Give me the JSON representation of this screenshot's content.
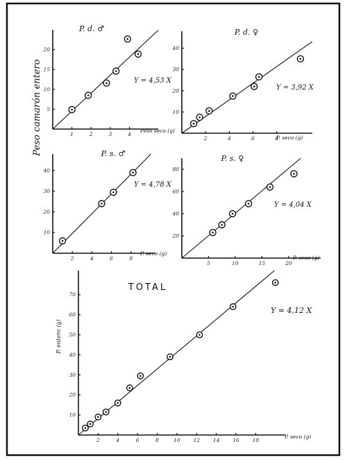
{
  "figure": {
    "ylabel": "Peso camarón entero"
  },
  "chart_data": [
    {
      "type": "scatter",
      "title": "P. d. ♂",
      "equation": "Y = 4,53 X",
      "slope": 4.53,
      "xlabel": "Peso seco (g)",
      "ylabel": "",
      "xlim": [
        0,
        5.5
      ],
      "ylim": [
        0,
        25
      ],
      "xticks": [
        1,
        2,
        3,
        4
      ],
      "yticks": [
        5,
        10,
        15,
        20
      ],
      "x": [
        1.0,
        1.85,
        2.8,
        3.3,
        3.9,
        4.45
      ],
      "y": [
        4.9,
        8.5,
        11.6,
        14.6,
        22.7,
        18.9
      ]
    },
    {
      "type": "scatter",
      "title": "P. d. ♀",
      "equation": "Y = 3,92 X",
      "slope": 3.92,
      "xlabel": "P. seco (g)",
      "ylabel": "",
      "xlim": [
        0,
        11
      ],
      "ylim": [
        0,
        48
      ],
      "xticks": [
        2,
        4,
        6,
        8
      ],
      "yticks": [
        10,
        20,
        30,
        40
      ],
      "x": [
        1.0,
        1.5,
        2.3,
        4.3,
        6.1,
        6.5,
        10.0
      ],
      "y": [
        4.5,
        7.5,
        10.5,
        17.5,
        22.0,
        26.5,
        35.0
      ]
    },
    {
      "type": "scatter",
      "title": "P. s. ♂",
      "equation": "Y = 4,78 X",
      "slope": 4.78,
      "xlabel": "P. seco (g)",
      "ylabel": "",
      "xlim": [
        0,
        10.5
      ],
      "ylim": [
        0,
        48
      ],
      "xticks": [
        2,
        4,
        6,
        8
      ],
      "yticks": [
        10,
        20,
        30,
        40
      ],
      "x": [
        1.0,
        5.0,
        6.2,
        8.2
      ],
      "y": [
        6.0,
        24.0,
        29.5,
        39.0
      ]
    },
    {
      "type": "scatter",
      "title": "P. s. ♀",
      "equation": "Y = 4,04 X",
      "slope": 4.04,
      "xlabel": "P. seco (g)",
      "ylabel": "",
      "xlim": [
        0,
        26
      ],
      "ylim": [
        0,
        90
      ],
      "xticks": [
        5,
        10,
        15,
        20
      ],
      "yticks": [
        20,
        40,
        60,
        80
      ],
      "x": [
        5.8,
        7.5,
        9.5,
        12.5,
        16.5,
        21.0
      ],
      "y": [
        23.0,
        30.0,
        40.0,
        49.0,
        64.0,
        76.0
      ]
    },
    {
      "type": "scatter",
      "title": "TOTAL",
      "equation": "Y = 4,12 X",
      "slope": 4.12,
      "xlabel": "P. seco (g)",
      "ylabel": "P. entero (g)",
      "xlim": [
        0,
        21
      ],
      "ylim": [
        0,
        82
      ],
      "xticks": [
        2,
        4,
        6,
        8,
        10,
        12,
        14,
        16,
        18
      ],
      "yticks": [
        10,
        20,
        30,
        40,
        50,
        60,
        70
      ],
      "x": [
        0.7,
        1.2,
        2.0,
        2.8,
        4.0,
        5.2,
        6.3,
        9.3,
        12.3,
        15.7,
        20.0
      ],
      "y": [
        3.5,
        5.5,
        9.0,
        11.5,
        16.0,
        23.5,
        29.5,
        39.0,
        50.0,
        64.0,
        76.0
      ]
    }
  ]
}
